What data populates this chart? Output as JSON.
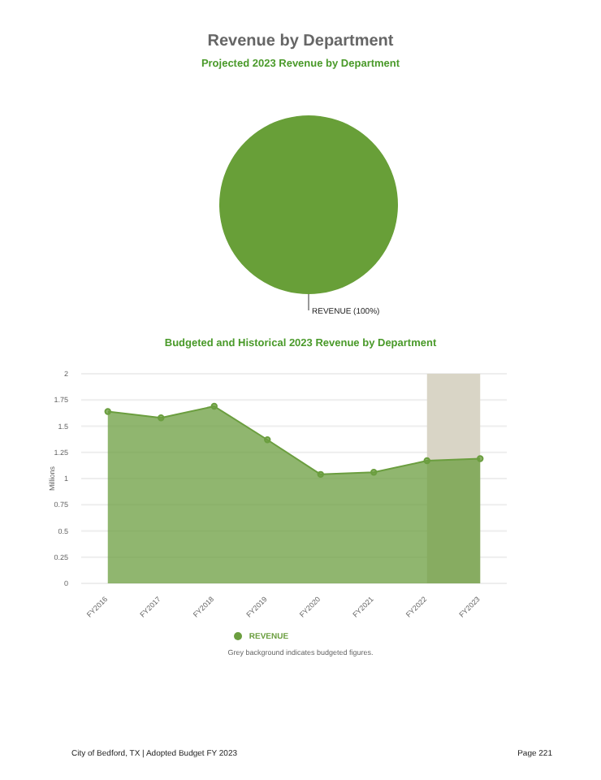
{
  "chart_data": [
    {
      "type": "pie",
      "title": "Revenue by Department",
      "subtitle": "Projected 2023 Revenue by Department",
      "categories": [
        "REVENUE"
      ],
      "values": [
        100
      ],
      "colors": [
        "#689f38"
      ],
      "value_labels": [
        "(100%)"
      ],
      "legend": false
    },
    {
      "type": "area",
      "title": "Budgeted and Historical 2023 Revenue by Department",
      "categories": [
        "FY2016",
        "FY2017",
        "FY2018",
        "FY2019",
        "FY2020",
        "FY2021",
        "FY2022",
        "FY2023"
      ],
      "series": [
        {
          "name": "REVENUE",
          "color": "#6b9e3f",
          "values": [
            1.64,
            1.58,
            1.69,
            1.37,
            1.04,
            1.06,
            1.17,
            1.19
          ]
        }
      ],
      "ylabel": "Millions",
      "ylim": [
        0,
        2
      ],
      "yticks": [
        0,
        {
          "value": 0.25,
          "label": "0.25"
        },
        {
          "value": 0.5,
          "label": "0.5"
        },
        {
          "value": 0.75,
          "label": "0.75"
        },
        1,
        {
          "value": 1.25,
          "label": "1.25"
        },
        {
          "value": 1.5,
          "label": "1.5"
        },
        {
          "value": 1.75,
          "label": "1.75"
        },
        2
      ],
      "grid": "y",
      "marker": "circle",
      "legend": "bottom",
      "bands": [
        {
          "axis": "x",
          "from": "FY2022",
          "to": "FY2023",
          "label": null,
          "color": "#d9d5c6"
        }
      ],
      "annotations": [
        "Grey background indicates budgeted figures.",
        "City of Bedford, TX | Adopted Budget FY 2023",
        "Page 221"
      ]
    }
  ]
}
